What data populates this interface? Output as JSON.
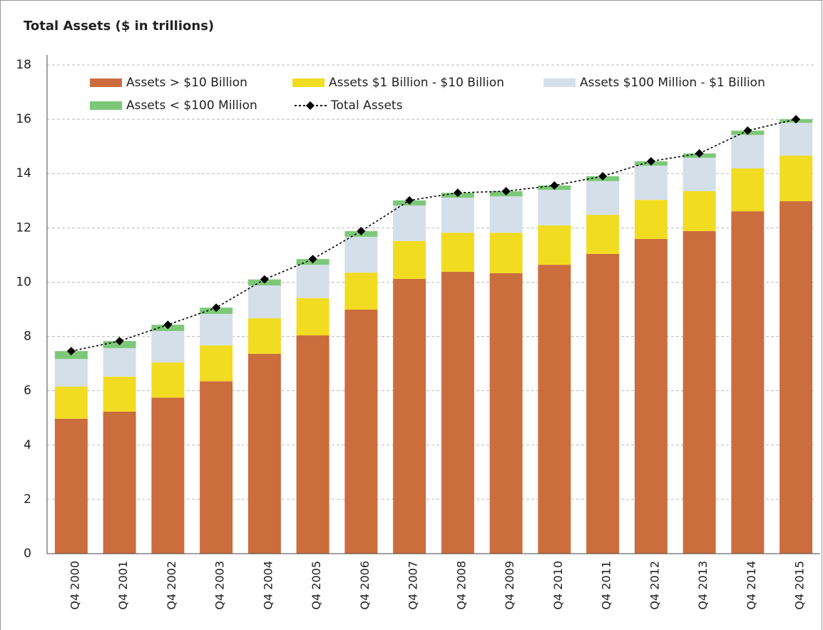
{
  "chart_data": {
    "type": "bar",
    "stacked": true,
    "title": "Total Assets ($ in trillions)",
    "categories": [
      "Q4 2000",
      "Q4 2001",
      "Q4 2002",
      "Q4 2003",
      "Q4 2004",
      "Q4 2005",
      "Q4 2006",
      "Q4 2007",
      "Q4 2008",
      "Q4 2009",
      "Q4 2010",
      "Q4 2011",
      "Q4 2012",
      "Q4 2013",
      "Q4 2014",
      "Q4 2015"
    ],
    "series": [
      {
        "name": "Assets > $10 Billion",
        "color": "#cc6d3d",
        "values": [
          4.97,
          5.23,
          5.75,
          6.35,
          7.36,
          8.04,
          8.99,
          10.12,
          10.38,
          10.33,
          10.64,
          11.04,
          11.59,
          11.88,
          12.61,
          12.98
        ]
      },
      {
        "name": "Assets $1 Billion - $10 Billion",
        "color": "#f2dc22",
        "values": [
          1.18,
          1.29,
          1.29,
          1.32,
          1.31,
          1.37,
          1.36,
          1.39,
          1.44,
          1.49,
          1.45,
          1.44,
          1.44,
          1.47,
          1.58,
          1.68
        ]
      },
      {
        "name": "Assets $100 Million - $1 Billion",
        "color": "#d5dfea",
        "values": [
          1.02,
          1.05,
          1.16,
          1.16,
          1.21,
          1.23,
          1.32,
          1.31,
          1.29,
          1.34,
          1.31,
          1.24,
          1.26,
          1.23,
          1.23,
          1.21
        ]
      },
      {
        "name": "Assets < $100 Million",
        "color": "#7dc878",
        "values": [
          0.29,
          0.26,
          0.23,
          0.23,
          0.22,
          0.21,
          0.21,
          0.19,
          0.18,
          0.19,
          0.16,
          0.18,
          0.16,
          0.16,
          0.16,
          0.13
        ]
      },
      {
        "name": "Total Assets",
        "type": "line",
        "color": "#000000",
        "values": [
          7.46,
          7.83,
          8.43,
          9.06,
          10.1,
          10.85,
          11.88,
          13.01,
          13.29,
          13.35,
          13.56,
          13.9,
          14.45,
          14.74,
          15.58,
          16.0
        ]
      }
    ],
    "ylim": [
      0,
      18
    ],
    "yticks": [
      0,
      2,
      4,
      6,
      8,
      10,
      12,
      14,
      16,
      18
    ],
    "grid": true,
    "legend": "top"
  }
}
